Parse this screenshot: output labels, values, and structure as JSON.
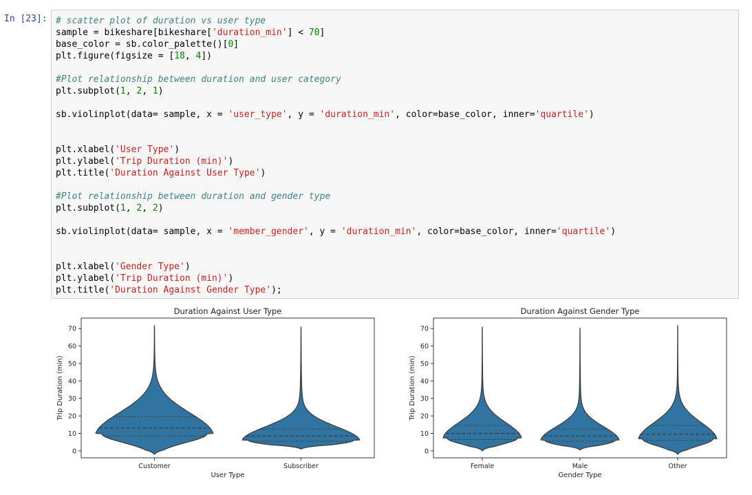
{
  "cell": {
    "prompt": "In [23]:",
    "code_lines": [
      [
        {
          "t": "# scatter plot of duration vs user type",
          "c": "comment"
        }
      ],
      [
        {
          "t": "sample = bikeshare[bikeshare[",
          "c": "plain"
        },
        {
          "t": "'duration_min'",
          "c": "string"
        },
        {
          "t": "] < ",
          "c": "plain"
        },
        {
          "t": "70",
          "c": "number"
        },
        {
          "t": "]",
          "c": "plain"
        }
      ],
      [
        {
          "t": "base_color = sb.color_palette()[",
          "c": "plain"
        },
        {
          "t": "0",
          "c": "number"
        },
        {
          "t": "]",
          "c": "plain"
        }
      ],
      [
        {
          "t": "plt.figure(figsize = [",
          "c": "plain"
        },
        {
          "t": "18",
          "c": "number"
        },
        {
          "t": ", ",
          "c": "plain"
        },
        {
          "t": "4",
          "c": "number"
        },
        {
          "t": "])",
          "c": "plain"
        }
      ],
      [],
      [
        {
          "t": "#Plot relationship between duration and user category",
          "c": "comment"
        }
      ],
      [
        {
          "t": "plt.subplot(",
          "c": "plain"
        },
        {
          "t": "1",
          "c": "number"
        },
        {
          "t": ", ",
          "c": "plain"
        },
        {
          "t": "2",
          "c": "number"
        },
        {
          "t": ", ",
          "c": "plain"
        },
        {
          "t": "1",
          "c": "number"
        },
        {
          "t": ")",
          "c": "plain"
        }
      ],
      [],
      [
        {
          "t": "sb.violinplot(data= sample, x = ",
          "c": "plain"
        },
        {
          "t": "'user_type'",
          "c": "string"
        },
        {
          "t": ", y = ",
          "c": "plain"
        },
        {
          "t": "'duration_min'",
          "c": "string"
        },
        {
          "t": ", color=base_color, inner=",
          "c": "plain"
        },
        {
          "t": "'quartile'",
          "c": "string"
        },
        {
          "t": ")",
          "c": "plain"
        }
      ],
      [],
      [],
      [
        {
          "t": "plt.xlabel(",
          "c": "plain"
        },
        {
          "t": "'User Type'",
          "c": "string"
        },
        {
          "t": ")",
          "c": "plain"
        }
      ],
      [
        {
          "t": "plt.ylabel(",
          "c": "plain"
        },
        {
          "t": "'Trip Duration (min)'",
          "c": "string"
        },
        {
          "t": ")",
          "c": "plain"
        }
      ],
      [
        {
          "t": "plt.title(",
          "c": "plain"
        },
        {
          "t": "'Duration Against User Type'",
          "c": "string"
        },
        {
          "t": ")",
          "c": "plain"
        }
      ],
      [],
      [
        {
          "t": "#Plot relationship between duration and gender type",
          "c": "comment"
        }
      ],
      [
        {
          "t": "plt.subplot(",
          "c": "plain"
        },
        {
          "t": "1",
          "c": "number"
        },
        {
          "t": ", ",
          "c": "plain"
        },
        {
          "t": "2",
          "c": "number"
        },
        {
          "t": ", ",
          "c": "plain"
        },
        {
          "t": "2",
          "c": "number"
        },
        {
          "t": ")",
          "c": "plain"
        }
      ],
      [],
      [
        {
          "t": "sb.violinplot(data= sample, x = ",
          "c": "plain"
        },
        {
          "t": "'member_gender'",
          "c": "string"
        },
        {
          "t": ", y = ",
          "c": "plain"
        },
        {
          "t": "'duration_min'",
          "c": "string"
        },
        {
          "t": ", color=base_color, inner=",
          "c": "plain"
        },
        {
          "t": "'quartile'",
          "c": "string"
        },
        {
          "t": ")",
          "c": "plain"
        }
      ],
      [],
      [],
      [
        {
          "t": "plt.xlabel(",
          "c": "plain"
        },
        {
          "t": "'Gender Type'",
          "c": "string"
        },
        {
          "t": ")",
          "c": "plain"
        }
      ],
      [
        {
          "t": "plt.ylabel(",
          "c": "plain"
        },
        {
          "t": "'Trip Duration (min)'",
          "c": "string"
        },
        {
          "t": ")",
          "c": "plain"
        }
      ],
      [
        {
          "t": "plt.title(",
          "c": "plain"
        },
        {
          "t": "'Duration Against Gender Type'",
          "c": "string"
        },
        {
          "t": ");",
          "c": "plain"
        }
      ]
    ]
  },
  "colors": {
    "violin_fill": "#3274a1",
    "violin_edge": "#3d3d3d",
    "quartile_line": "#3d3d3d"
  },
  "chart_data": [
    {
      "type": "violin",
      "title": "Duration Against User Type",
      "xlabel": "User Type",
      "ylabel": "Trip Duration (min)",
      "categories": [
        "Customer",
        "Subscriber"
      ],
      "ylim": [
        -4,
        76
      ],
      "yticks": [
        0,
        10,
        20,
        30,
        40,
        50,
        60,
        70
      ],
      "grid": false,
      "legend": "none",
      "violins": [
        {
          "category": "Customer",
          "min": -2,
          "max": 72,
          "q1": 8.5,
          "median": 13,
          "q3": 19.5
        },
        {
          "category": "Subscriber",
          "min": 1,
          "max": 71,
          "q1": 5.5,
          "median": 8.5,
          "q3": 12.5
        }
      ]
    },
    {
      "type": "violin",
      "title": "Duration Against Gender Type",
      "xlabel": "Gender Type",
      "ylabel": "Trip Duration (min)",
      "categories": [
        "Female",
        "Male",
        "Other"
      ],
      "ylim": [
        -4,
        76
      ],
      "yticks": [
        0,
        10,
        20,
        30,
        40,
        50,
        60,
        70
      ],
      "grid": false,
      "legend": "none",
      "violins": [
        {
          "category": "Female",
          "min": 0,
          "max": 71,
          "q1": 6.5,
          "median": 10,
          "q3": 14.5
        },
        {
          "category": "Male",
          "min": 0.5,
          "max": 70.5,
          "q1": 5.5,
          "median": 8.5,
          "q3": 12.5
        },
        {
          "category": "Other",
          "min": -2,
          "max": 72,
          "q1": 6,
          "median": 9.5,
          "q3": 14.5
        }
      ]
    }
  ]
}
